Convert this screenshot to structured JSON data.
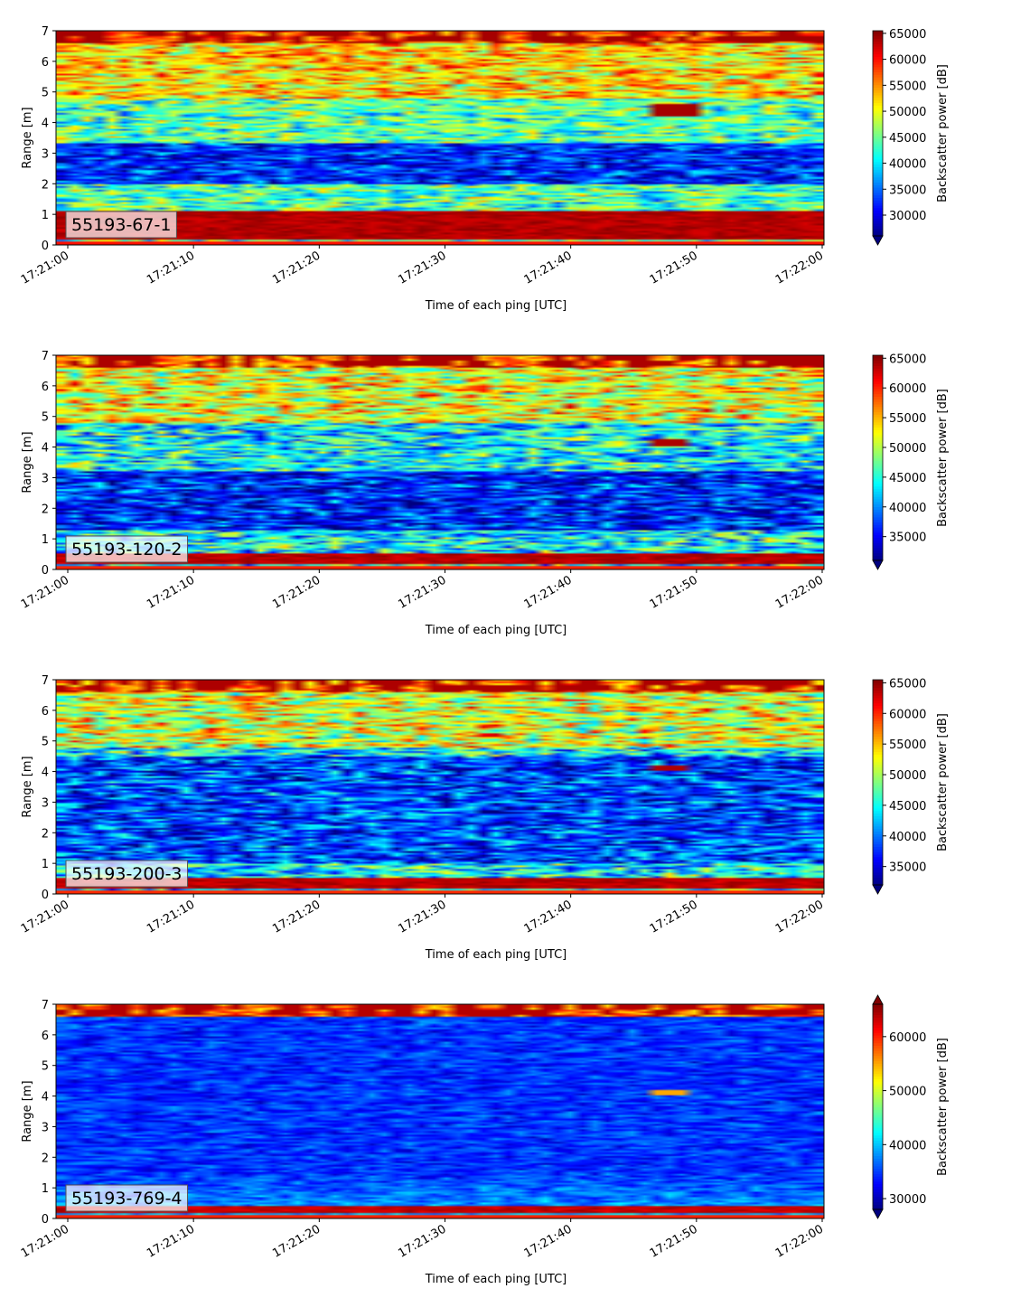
{
  "chart_data": [
    {
      "type": "heatmap",
      "label": "55193-67-1",
      "xlabel": "Time of each ping [UTC]",
      "ylabel": "Range [m]",
      "x_range": [
        "17:21:00",
        "17:22:00"
      ],
      "x_ticks": [
        "17:21:00",
        "17:21:10",
        "17:21:20",
        "17:21:30",
        "17:21:40",
        "17:21:50",
        "17:22:00"
      ],
      "ylim": [
        0,
        7
      ],
      "y_ticks": [
        0,
        1,
        2,
        3,
        4,
        5,
        6,
        7
      ],
      "colorbar": {
        "label": "Backscatter power [dB]",
        "colormap": "jet",
        "range": [
          26000,
          65500
        ],
        "ticks": [
          30000,
          35000,
          40000,
          45000,
          50000,
          55000,
          60000,
          65000
        ],
        "extend": "min"
      },
      "features": [
        {
          "feature": "strong bottom band",
          "y_from": 0.2,
          "y_to": 1.1,
          "value": 65000
        },
        {
          "feature": "low layer",
          "y_from": 2.0,
          "y_to": 3.3,
          "value": 31000
        },
        {
          "feature": "strong top edge",
          "y_from": 6.6,
          "y_to": 7.0,
          "value": 64000
        },
        {
          "feature": "patch",
          "time": "17:21:47-17:21:51",
          "y_from": 4.2,
          "y_to": 4.6,
          "value": 64000
        }
      ]
    },
    {
      "type": "heatmap",
      "label": "55193-120-2",
      "xlabel": "Time of each ping [UTC]",
      "ylabel": "Range [m]",
      "x_range": [
        "17:21:00",
        "17:22:00"
      ],
      "x_ticks": [
        "17:21:00",
        "17:21:10",
        "17:21:20",
        "17:21:30",
        "17:21:40",
        "17:21:50",
        "17:22:00"
      ],
      "ylim": [
        0,
        7
      ],
      "y_ticks": [
        0,
        1,
        2,
        3,
        4,
        5,
        6,
        7
      ],
      "colorbar": {
        "label": "Backscatter power [dB]",
        "colormap": "jet",
        "range": [
          31000,
          65500
        ],
        "ticks": [
          35000,
          40000,
          45000,
          50000,
          55000,
          60000,
          65000
        ],
        "extend": "min"
      },
      "features": [
        {
          "feature": "strong bottom band",
          "y_from": 0.15,
          "y_to": 0.55,
          "value": 65000
        },
        {
          "feature": "low layer",
          "y_from": 1.3,
          "y_to": 3.2,
          "value": 35000
        },
        {
          "feature": "strong top edge",
          "y_from": 6.6,
          "y_to": 7.0,
          "value": 64000
        },
        {
          "feature": "patch",
          "time": "17:21:47-17:21:50",
          "y_from": 4.05,
          "y_to": 4.25,
          "value": 64000
        }
      ]
    },
    {
      "type": "heatmap",
      "label": "55193-200-3",
      "xlabel": "Time of each ping [UTC]",
      "ylabel": "Range [m]",
      "x_range": [
        "17:21:00",
        "17:22:00"
      ],
      "x_ticks": [
        "17:21:00",
        "17:21:10",
        "17:21:20",
        "17:21:30",
        "17:21:40",
        "17:21:50",
        "17:22:00"
      ],
      "ylim": [
        0,
        7
      ],
      "y_ticks": [
        0,
        1,
        2,
        3,
        4,
        5,
        6,
        7
      ],
      "colorbar": {
        "label": "Backscatter power [dB]",
        "colormap": "jet",
        "range": [
          32000,
          65500
        ],
        "ticks": [
          35000,
          40000,
          45000,
          50000,
          55000,
          60000,
          65000
        ],
        "extend": "min"
      },
      "features": [
        {
          "feature": "strong bottom band",
          "y_from": 0.15,
          "y_to": 0.5,
          "value": 65000
        },
        {
          "feature": "low layer",
          "y_from": 1.0,
          "y_to": 4.5,
          "value": 37000
        },
        {
          "feature": "strong top edge",
          "y_from": 6.6,
          "y_to": 7.0,
          "value": 64000
        },
        {
          "feature": "patch",
          "time": "17:21:47-17:21:50",
          "y_from": 4.05,
          "y_to": 4.2,
          "value": 64000
        }
      ]
    },
    {
      "type": "heatmap",
      "label": "55193-769-4",
      "xlabel": "Time of each ping [UTC]",
      "ylabel": "Range [m]",
      "x_range": [
        "17:21:00",
        "17:22:00"
      ],
      "x_ticks": [
        "17:21:00",
        "17:21:10",
        "17:21:20",
        "17:21:30",
        "17:21:40",
        "17:21:50",
        "17:22:00"
      ],
      "ylim": [
        0,
        7
      ],
      "y_ticks": [
        0,
        1,
        2,
        3,
        4,
        5,
        6,
        7
      ],
      "colorbar": {
        "label": "Backscatter power [dB]",
        "colormap": "jet",
        "range": [
          28000,
          66000
        ],
        "ticks": [
          30000,
          40000,
          50000,
          60000
        ],
        "extend": "both"
      },
      "features": [
        {
          "feature": "strong bottom band",
          "y_from": 0.15,
          "y_to": 0.4,
          "value": 65000
        },
        {
          "feature": "low background",
          "y_from": 0.5,
          "y_to": 6.5,
          "value": 33000
        },
        {
          "feature": "strong top edge",
          "y_from": 6.6,
          "y_to": 6.9,
          "value": 64000
        },
        {
          "feature": "patch",
          "time": "17:21:47-17:21:50",
          "y_from": 4.0,
          "y_to": 4.2,
          "value": 55000
        }
      ]
    }
  ]
}
